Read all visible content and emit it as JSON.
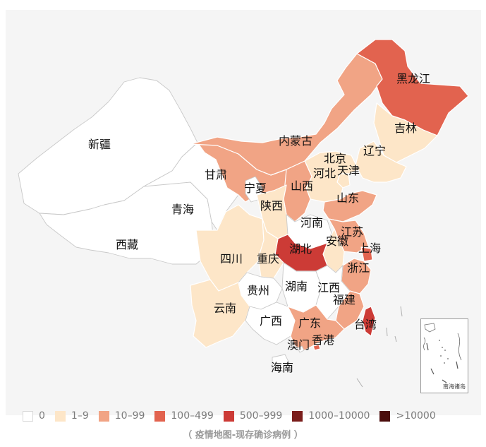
{
  "colors": {
    "none": "#ffffff",
    "1-9": "#fde6c8",
    "10-99": "#f1a485",
    "100-499": "#e2634f",
    "500-999": "#cc3b36",
    "1000-10000": "#7a1d1b",
    ">10000": "#4b0d0c",
    "background": "#f5f5f5"
  },
  "legend": [
    {
      "label": "0",
      "bucket": "none"
    },
    {
      "label": "1–9",
      "bucket": "1-9"
    },
    {
      "label": "10–99",
      "bucket": "10-99"
    },
    {
      "label": "100–499",
      "bucket": "100-499"
    },
    {
      "label": "500–999",
      "bucket": "500-999"
    },
    {
      "label": "1000–10000",
      "bucket": "1000-10000"
    },
    {
      "label": ">10000",
      "bucket": ">10000"
    }
  ],
  "provinces": [
    {
      "id": "xinjiang",
      "name": "新疆",
      "bucket": "none"
    },
    {
      "id": "xizang",
      "name": "西藏",
      "bucket": "none"
    },
    {
      "id": "qinghai",
      "name": "青海",
      "bucket": "none"
    },
    {
      "id": "gansu",
      "name": "甘肃",
      "bucket": "10-99"
    },
    {
      "id": "neimenggu",
      "name": "内蒙古",
      "bucket": "10-99"
    },
    {
      "id": "heilongjiang",
      "name": "黑龙江",
      "bucket": "100-499"
    },
    {
      "id": "jilin",
      "name": "吉林",
      "bucket": "1-9"
    },
    {
      "id": "liaoning",
      "name": "辽宁",
      "bucket": "1-9"
    },
    {
      "id": "beijing",
      "name": "北京",
      "bucket": "10-99"
    },
    {
      "id": "tianjin",
      "name": "天津",
      "bucket": "1-9"
    },
    {
      "id": "hebei",
      "name": "河北",
      "bucket": "1-9"
    },
    {
      "id": "shanxi",
      "name": "山西",
      "bucket": "10-99"
    },
    {
      "id": "shandong",
      "name": "山东",
      "bucket": "10-99"
    },
    {
      "id": "ningxia",
      "name": "宁夏",
      "bucket": "none"
    },
    {
      "id": "shaanxi",
      "name": "陕西",
      "bucket": "1-9"
    },
    {
      "id": "henan",
      "name": "河南",
      "bucket": "none"
    },
    {
      "id": "jiangsu",
      "name": "江苏",
      "bucket": "10-99"
    },
    {
      "id": "anhui",
      "name": "安徽",
      "bucket": "1-9"
    },
    {
      "id": "shanghai",
      "name": "上海",
      "bucket": "100-499"
    },
    {
      "id": "hubei",
      "name": "湖北",
      "bucket": "500-999"
    },
    {
      "id": "sichuan",
      "name": "四川",
      "bucket": "1-9"
    },
    {
      "id": "chongqing",
      "name": "重庆",
      "bucket": "1-9"
    },
    {
      "id": "zhejiang",
      "name": "浙江",
      "bucket": "10-99"
    },
    {
      "id": "guizhou",
      "name": "贵州",
      "bucket": "none"
    },
    {
      "id": "hunan",
      "name": "湖南",
      "bucket": "none"
    },
    {
      "id": "jiangxi",
      "name": "江西",
      "bucket": "none"
    },
    {
      "id": "fujian",
      "name": "福建",
      "bucket": "10-99"
    },
    {
      "id": "yunnan",
      "name": "云南",
      "bucket": "1-9"
    },
    {
      "id": "guangxi",
      "name": "广西",
      "bucket": "none"
    },
    {
      "id": "guangdong",
      "name": "广东",
      "bucket": "10-99"
    },
    {
      "id": "taiwan",
      "name": "台湾",
      "bucket": "500-999"
    },
    {
      "id": "aomen",
      "name": "澳门",
      "bucket": "none"
    },
    {
      "id": "xianggang",
      "name": "香港",
      "bucket": "100-499"
    },
    {
      "id": "hainan",
      "name": "海南",
      "bucket": "none"
    }
  ],
  "inset": {
    "label": "南海诸岛"
  },
  "caption": "（ 疫情地图-现存确诊病例 ）"
}
